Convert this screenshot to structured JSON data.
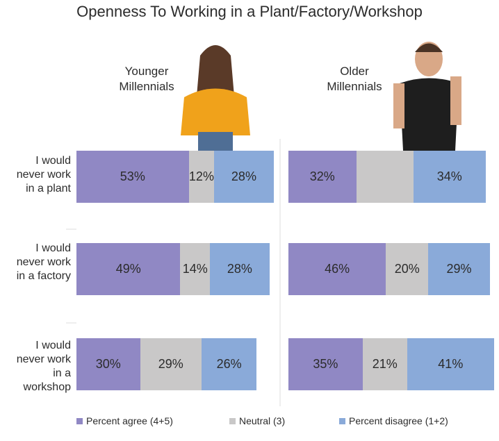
{
  "chart_data": {
    "type": "bar",
    "orientation": "horizontal",
    "stacked": true,
    "title": "Openness To Working in a Plant/Factory/Workshop",
    "categories": [
      "I would never work in a plant",
      "I would never work in a factory",
      "I would never work in a workshop"
    ],
    "series": [
      {
        "name": "Percent agree (4+5)",
        "color": "#9088c4"
      },
      {
        "name": "Neutral (3)",
        "color": "#c9c8c8"
      },
      {
        "name": "Percent disagree (1+2)",
        "color": "#8aaad9"
      }
    ],
    "panels": [
      {
        "subtitle": "Younger Millennials",
        "series": [
          {
            "values": [
              53,
              49,
              30
            ],
            "value_labels": [
              "53%",
              "49%",
              "30%"
            ]
          },
          {
            "values": [
              12,
              14,
              29
            ],
            "value_labels": [
              "12%",
              "14%",
              "29%"
            ]
          },
          {
            "values": [
              28,
              28,
              26
            ],
            "value_labels": [
              "28%",
              "28%",
              "26%"
            ]
          }
        ]
      },
      {
        "subtitle": "Older Millennials",
        "series": [
          {
            "values": [
              32,
              46,
              35
            ],
            "value_labels": [
              "32%",
              "46%",
              "35%"
            ]
          },
          {
            "values": [
              27,
              20,
              21
            ],
            "value_labels": [
              null,
              "20%",
              "21%"
            ]
          },
          {
            "values": [
              34,
              29,
              41
            ],
            "value_labels": [
              "34%",
              "29%",
              "41%"
            ]
          }
        ]
      }
    ]
  }
}
